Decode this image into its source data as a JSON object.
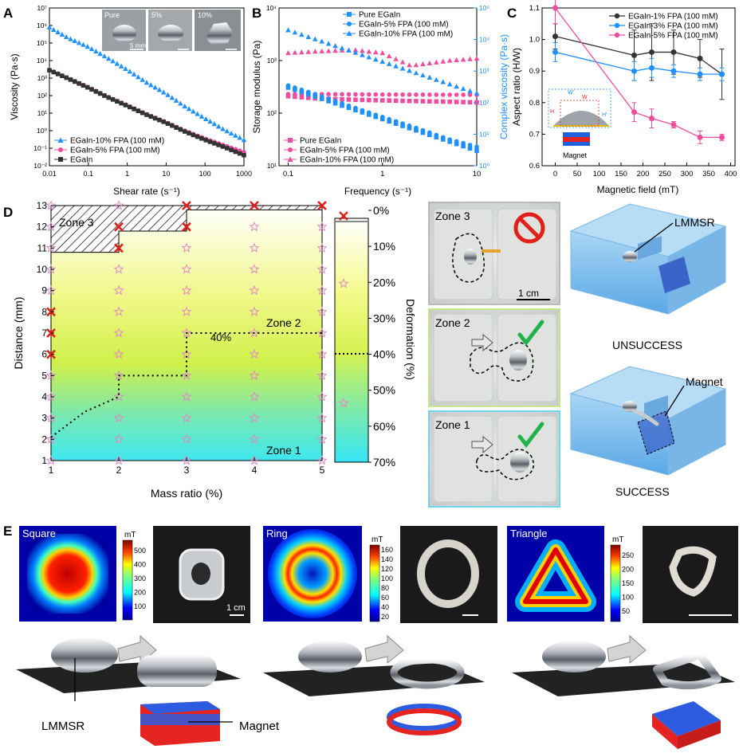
{
  "panel_letters": {
    "a": "A",
    "b": "B",
    "c": "C",
    "d": "D",
    "e": "E"
  },
  "colors": {
    "pure": "#333333",
    "fpa5": "#ee4d9f",
    "fpa10": "#1e90ff",
    "c1": "#333333",
    "c3": "#1e90ff",
    "c5": "#ee4d9f",
    "magnet_red": "#e52421",
    "magnet_blue": "#2060d8",
    "gel_blue": "#8ec5ee",
    "check_green": "#22b24c",
    "cross_red": "#e0201a",
    "star_pink": "#e08ac6"
  },
  "panelA": {
    "inset_labels": [
      "Pure",
      "5%",
      "10%"
    ],
    "scale_label": "5 mm"
  },
  "panelD": {
    "zone_labels": [
      "Zone 3",
      "Zone 2",
      "Zone 1"
    ],
    "contour_label": "40%",
    "photo_zone_labels": [
      "Zone 3",
      "Zone 2",
      "Zone 1"
    ],
    "scale_label": "1 cm",
    "render_labels": [
      "LMMSR",
      "UNSUCCESS",
      "Magnet",
      "SUCCESS"
    ]
  },
  "panelE": {
    "field_titles": [
      "Square",
      "Ring",
      "Triangle"
    ],
    "unit_label": "mT",
    "cbar_square": [
      "500",
      "400",
      "300",
      "200",
      "100"
    ],
    "cbar_ring": [
      "160",
      "140",
      "120",
      "100",
      "80",
      "60",
      "40",
      "20"
    ],
    "cbar_triangle": [
      "250",
      "200",
      "150",
      "100",
      "50"
    ],
    "scale_label": "1 cm",
    "bottom_labels": [
      "LMMSR",
      "Magnet"
    ]
  },
  "chart_data": [
    {
      "type": "scatter",
      "panel": "A",
      "xlabel": "Shear rate (s⁻¹)",
      "ylabel": "Viscosity (Pa·s)",
      "xscale": "log",
      "yscale": "log",
      "xlim": [
        0.01,
        1000
      ],
      "ylim": [
        0.01,
        10000000
      ],
      "x_ticks": [
        "0.01",
        "0.1",
        "1",
        "10",
        "100",
        "1000"
      ],
      "y_ticks": [
        "10⁻²",
        "10⁻¹",
        "10⁰",
        "10¹",
        "10²",
        "10³",
        "10⁴",
        "10⁵",
        "10⁶",
        "10⁷"
      ],
      "legend_position": "bottom-left",
      "series": [
        {
          "name": "EGaIn-10% FPA (100 mM)",
          "marker": "triangle",
          "color_key": "fpa10",
          "x": [
            0.01,
            0.03,
            0.1,
            0.3,
            1,
            3,
            10,
            30,
            100,
            300,
            1000
          ],
          "y": [
            800000,
            200000,
            60000,
            15000,
            3000,
            600,
            130,
            25,
            5,
            1.2,
            0.3
          ]
        },
        {
          "name": "EGaIn-5% FPA (100 mM)",
          "marker": "circle",
          "color_key": "fpa5",
          "x": [
            0.01,
            0.03,
            0.1,
            0.3,
            1,
            3,
            10,
            30,
            100,
            300,
            1000
          ],
          "y": [
            3000,
            1000,
            300,
            90,
            28,
            9,
            3,
            1,
            0.35,
            0.15,
            0.06
          ]
        },
        {
          "name": "EGaIn",
          "marker": "square",
          "color_key": "pure",
          "x": [
            0.01,
            0.03,
            0.1,
            0.3,
            1,
            3,
            10,
            30,
            100,
            300,
            1000
          ],
          "y": [
            2800,
            950,
            280,
            85,
            26,
            8.5,
            2.8,
            0.9,
            0.3,
            0.12,
            0.04
          ]
        }
      ]
    },
    {
      "type": "scatter",
      "panel": "B",
      "xlabel": "Frequency (s⁻¹)",
      "ylabel": "Storage modulus (Pa)",
      "ylabel_right": "Complex viscosity (Pa·s)",
      "xscale": "log",
      "yscale": "log",
      "xlim": [
        0.08,
        10
      ],
      "ylim": [
        10,
        10000
      ],
      "ylim_right": [
        1,
        100000
      ],
      "x_ticks": [
        "0.1",
        "1",
        "10"
      ],
      "y_ticks": [
        "10¹",
        "10²",
        "10³",
        "10⁴"
      ],
      "y_ticks_right": [
        "10⁰",
        "10¹",
        "10²",
        "10³",
        "10⁴",
        "10⁵"
      ],
      "legend_entries_left": [
        "Pure EGaIn",
        "EGaIn-5% FPA (100 mM)",
        "EGaIn-10% FPA (100 mM)"
      ],
      "legend_entries_right": [
        "Pure EGaIn",
        "EGaIn-5% FPA (100 mM)",
        "EGaIn-10% FPA (100 mM)"
      ],
      "series": [
        {
          "name": "Pure EGaIn",
          "axis": "left",
          "marker": "square",
          "color_key": "pure_pink",
          "x": [
            0.1,
            0.2,
            0.5,
            1,
            2,
            5,
            10
          ],
          "y": [
            210,
            190,
            180,
            175,
            170,
            165,
            160
          ]
        },
        {
          "name": "EGaIn-5% FPA (100 mM)",
          "axis": "left",
          "marker": "circle",
          "color_key": "fpa5",
          "x": [
            0.1,
            0.2,
            0.5,
            1,
            2,
            5,
            10
          ],
          "y": [
            230,
            230,
            228,
            226,
            225,
            224,
            223
          ]
        },
        {
          "name": "EGaIn-10% FPA (100 mM)",
          "axis": "left",
          "marker": "triangle",
          "color_key": "fpa5",
          "x": [
            0.1,
            0.2,
            0.5,
            1,
            2,
            5,
            10
          ],
          "y": [
            1400,
            1500,
            1600,
            1400,
            800,
            1000,
            1100
          ]
        },
        {
          "name": "Pure EGaIn",
          "axis": "right",
          "marker": "square",
          "color_key": "fpa10",
          "x": [
            0.1,
            0.2,
            0.5,
            1,
            2,
            5,
            10
          ],
          "y": [
            300,
            150,
            60,
            30,
            15,
            6,
            3
          ]
        },
        {
          "name": "EGaIn-5% FPA (100 mM)",
          "axis": "right",
          "marker": "circle",
          "color_key": "fpa10",
          "x": [
            0.1,
            0.2,
            0.5,
            1,
            2,
            5,
            10
          ],
          "y": [
            350,
            180,
            70,
            35,
            18,
            7,
            4
          ]
        },
        {
          "name": "EGaIn-10% FPA (100 mM)",
          "axis": "right",
          "marker": "triangle",
          "color_key": "fpa10",
          "x": [
            0.1,
            0.2,
            0.5,
            1,
            2,
            5,
            10
          ],
          "y": [
            20000,
            10000,
            4000,
            2000,
            1000,
            400,
            200
          ]
        }
      ]
    },
    {
      "type": "line",
      "panel": "C",
      "xlabel": "Magnetic field (mT)",
      "ylabel": "Aspect ratio (H/W)",
      "xlim": [
        -30,
        410
      ],
      "ylim": [
        0.6,
        1.1
      ],
      "x_ticks": [
        "0",
        "50",
        "100",
        "150",
        "200",
        "250",
        "300",
        "350",
        "400"
      ],
      "y_ticks": [
        "0.6",
        "0.7",
        "0.8",
        "0.9",
        "1.0",
        "1.1"
      ],
      "legend_position": "top-right",
      "inset_labels": [
        "W'",
        "W",
        "H",
        "H'",
        "Magnet"
      ],
      "series": [
        {
          "name": "EGaIn-1% FPA (100 mM)",
          "color_key": "c1",
          "x": [
            0,
            180,
            220,
            270,
            330,
            380
          ],
          "y": [
            1.01,
            0.95,
            0.96,
            0.96,
            0.94,
            0.89
          ],
          "err": [
            0.04,
            0.08,
            0.09,
            0.07,
            0.06,
            0.08
          ]
        },
        {
          "name": "EGaIn-3% FPA (100 mM)",
          "color_key": "c3",
          "x": [
            0,
            180,
            220,
            270,
            330,
            380
          ],
          "y": [
            0.96,
            0.9,
            0.91,
            0.9,
            0.89,
            0.89
          ],
          "err": [
            0.03,
            0.03,
            0.03,
            0.02,
            0.02,
            0.02
          ]
        },
        {
          "name": "EGaIn-5% FPA (100 mM)",
          "color_key": "c5",
          "x": [
            0,
            180,
            220,
            270,
            330,
            380
          ],
          "y": [
            1.1,
            0.77,
            0.75,
            0.73,
            0.69,
            0.69
          ],
          "err": [
            0.05,
            0.03,
            0.03,
            0.01,
            0.02,
            0.01
          ]
        }
      ]
    },
    {
      "type": "heatmap",
      "panel": "D",
      "xlabel": "Mass ratio (%)",
      "ylabel": "Distance (mm)",
      "xlim": [
        1,
        5
      ],
      "ylim": [
        1,
        13
      ],
      "x_ticks": [
        "1",
        "2",
        "3",
        "4",
        "5"
      ],
      "y_ticks": [
        "1",
        "2",
        "3",
        "4",
        "5",
        "6",
        "7",
        "8",
        "9",
        "10",
        "11",
        "12",
        "13"
      ],
      "colorbar_label": "Deformation (%)",
      "colorbar_ticks": [
        "0%",
        "10%",
        "20%",
        "30%",
        "40%",
        "50%",
        "60%",
        "70%"
      ],
      "colorbar_range": [
        0,
        70
      ],
      "failure_points": [
        {
          "x": 1,
          "y": 6
        },
        {
          "x": 1,
          "y": 7
        },
        {
          "x": 1,
          "y": 8
        },
        {
          "x": 2,
          "y": 11
        },
        {
          "x": 2,
          "y": 12
        },
        {
          "x": 3,
          "y": 12
        },
        {
          "x": 3,
          "y": 13
        },
        {
          "x": 4,
          "y": 13
        },
        {
          "x": 5,
          "y": 13
        }
      ],
      "contour_40": [
        [
          1.0,
          2.1
        ],
        [
          1.5,
          3.3
        ],
        [
          2.0,
          4.0
        ],
        [
          2.0,
          5.0
        ],
        [
          3.0,
          5.0
        ],
        [
          3.0,
          7.0
        ],
        [
          5.0,
          7.0
        ]
      ]
    }
  ]
}
